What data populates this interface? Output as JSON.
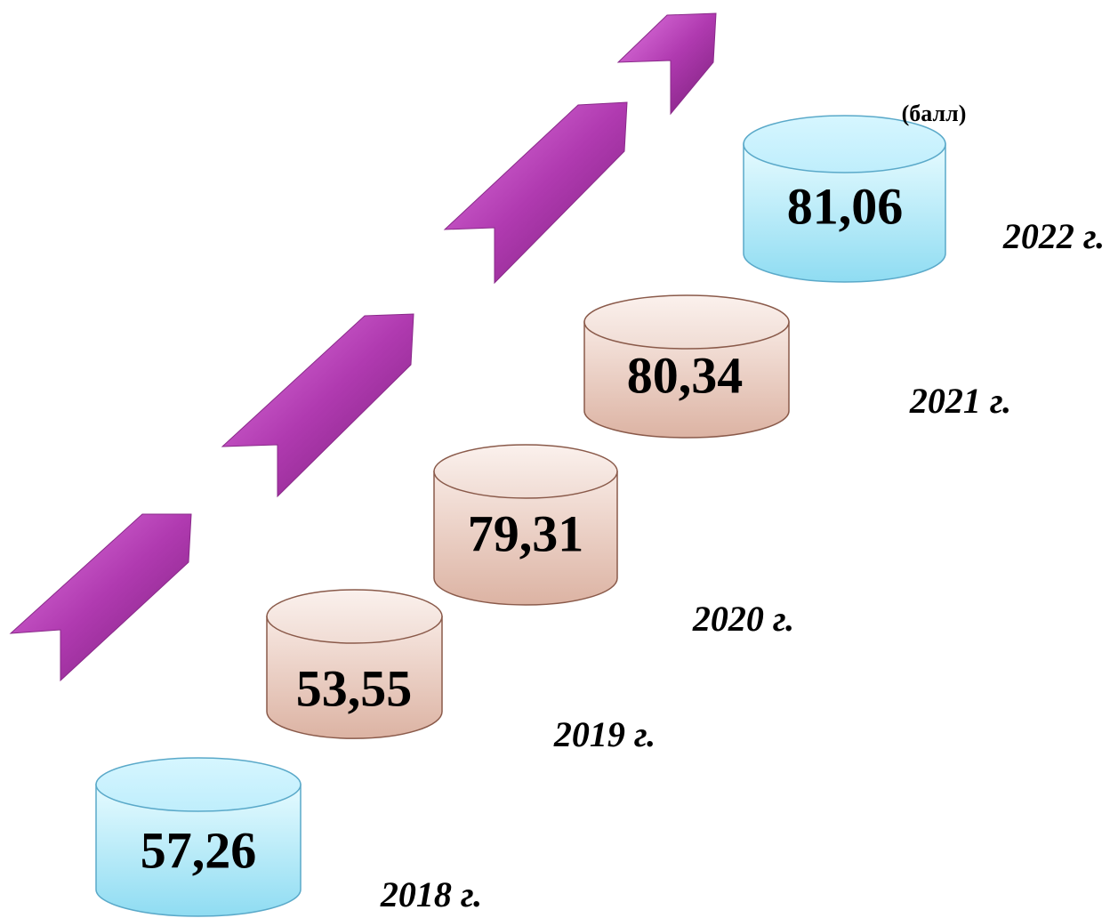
{
  "unit": "(балл)",
  "items": [
    {
      "value": "57,26",
      "year": "2018 г."
    },
    {
      "value": "53,55",
      "year": "2019 г."
    },
    {
      "value": "79,31",
      "year": "2020 г."
    },
    {
      "value": "80,34",
      "year": "2021 г."
    },
    {
      "value": "81,06",
      "year": "2022 г."
    }
  ]
}
